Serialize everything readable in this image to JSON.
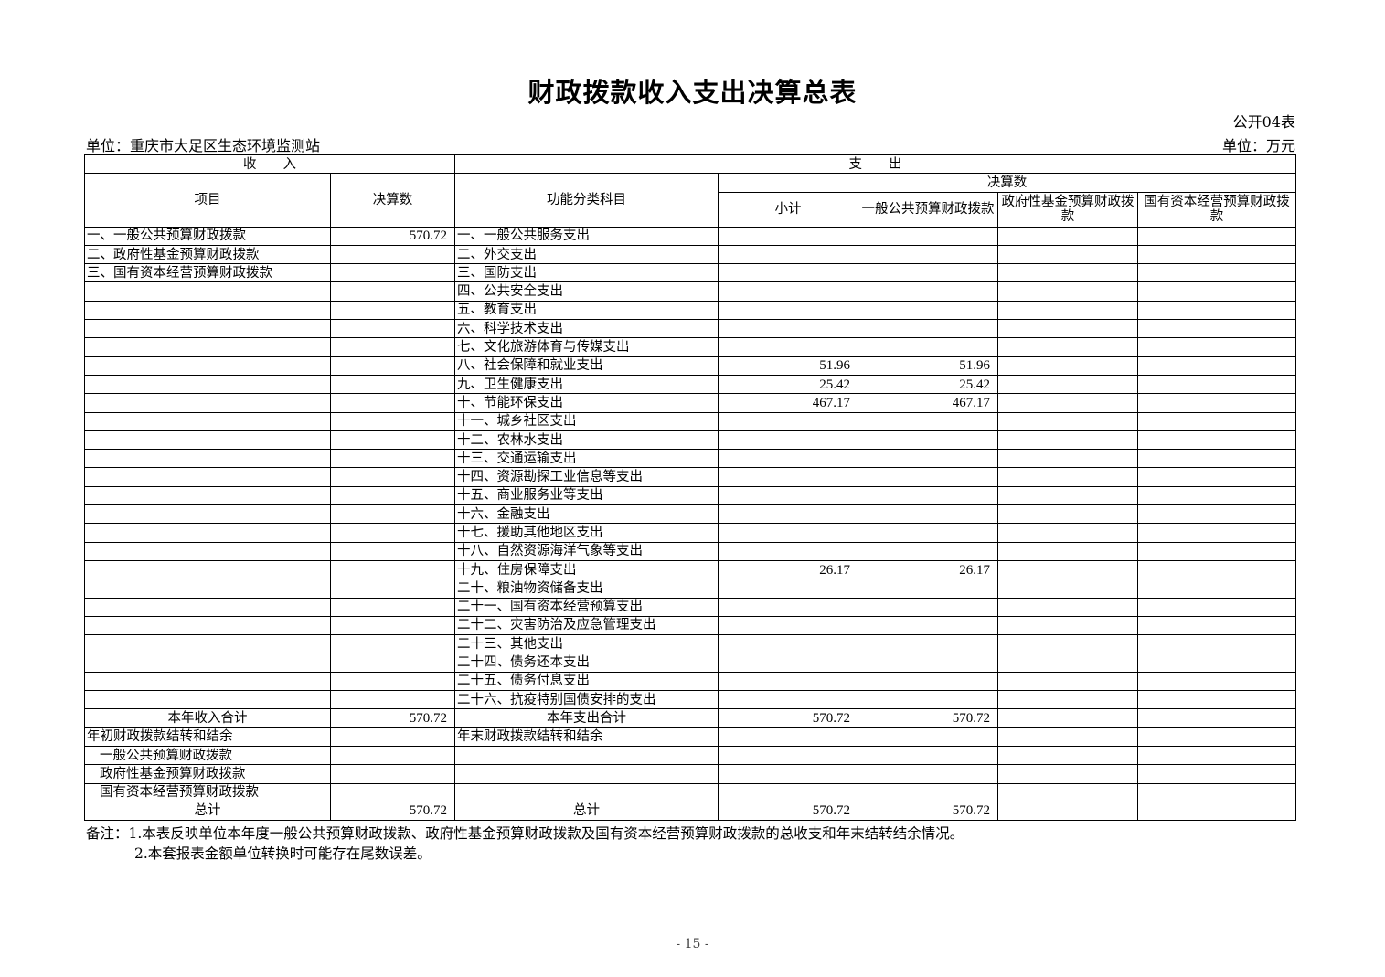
{
  "title": "财政拨款收入支出决算总表",
  "form_no": "公开04表",
  "unit_left": "单位：重庆市大足区生态环境监测站",
  "unit_right": "单位：万元",
  "header": {
    "income": "收　　入",
    "expense": "支　　出",
    "item": "项目",
    "amount": "决算数",
    "func": "功能分类科目",
    "final": "决算数",
    "subtotal": "小计",
    "general": "一般公共预算财政拨款",
    "fund": "政府性基金预算财政拨款",
    "state": "国有资本经营预算财政拨款"
  },
  "rows": [
    {
      "inc": "一、一般公共预算财政拨款",
      "inc_v": "570.72",
      "exp": "一、一般公共服务支出"
    },
    {
      "inc": "二、政府性基金预算财政拨款",
      "exp": "二、外交支出"
    },
    {
      "inc": "三、国有资本经营预算财政拨款",
      "exp": "三、国防支出"
    },
    {
      "exp": "四、公共安全支出"
    },
    {
      "exp": "五、教育支出"
    },
    {
      "exp": "六、科学技术支出"
    },
    {
      "exp": "七、文化旅游体育与传媒支出"
    },
    {
      "exp": "八、社会保障和就业支出",
      "sub": "51.96",
      "gen": "51.96"
    },
    {
      "exp": "九、卫生健康支出",
      "sub": "25.42",
      "gen": "25.42"
    },
    {
      "exp": "十、节能环保支出",
      "sub": "467.17",
      "gen": "467.17"
    },
    {
      "exp": "十一、城乡社区支出"
    },
    {
      "exp": "十二、农林水支出"
    },
    {
      "exp": "十三、交通运输支出"
    },
    {
      "exp": "十四、资源勘探工业信息等支出"
    },
    {
      "exp": "十五、商业服务业等支出"
    },
    {
      "exp": "十六、金融支出"
    },
    {
      "exp": "十七、援助其他地区支出"
    },
    {
      "exp": "十八、自然资源海洋气象等支出"
    },
    {
      "exp": "十九、住房保障支出",
      "sub": "26.17",
      "gen": "26.17"
    },
    {
      "exp": "二十、粮油物资储备支出"
    },
    {
      "exp": "二十一、国有资本经营预算支出"
    },
    {
      "exp": "二十二、灾害防治及应急管理支出"
    },
    {
      "exp": "二十三、其他支出"
    },
    {
      "exp": "二十四、债务还本支出"
    },
    {
      "exp": "二十五、债务付息支出"
    },
    {
      "exp": "二十六、抗疫特别国债安排的支出"
    },
    {
      "inc": "本年收入合计",
      "inc_v": "570.72",
      "exp": "本年支出合计",
      "sub": "570.72",
      "gen": "570.72",
      "style": "c"
    },
    {
      "inc": "年初财政拨款结转和结余",
      "exp": "年末财政拨款结转和结余"
    },
    {
      "inc": "一般公共预算财政拨款",
      "style": "i"
    },
    {
      "inc": "政府性基金预算财政拨款",
      "style": "i"
    },
    {
      "inc": "国有资本经营预算财政拨款",
      "style": "i"
    },
    {
      "inc": "总计",
      "inc_v": "570.72",
      "exp": "总计",
      "sub": "570.72",
      "gen": "570.72",
      "style": "c"
    }
  ],
  "note1": "备注：1.本表反映单位本年度一般公共预算财政拨款、政府性基金预算财政拨款及国有资本经营预算财政拨款的总收支和年末结转结余情况。",
  "note2": "2.本套报表金额单位转换时可能存在尾数误差。",
  "page_no": "- 15 -"
}
